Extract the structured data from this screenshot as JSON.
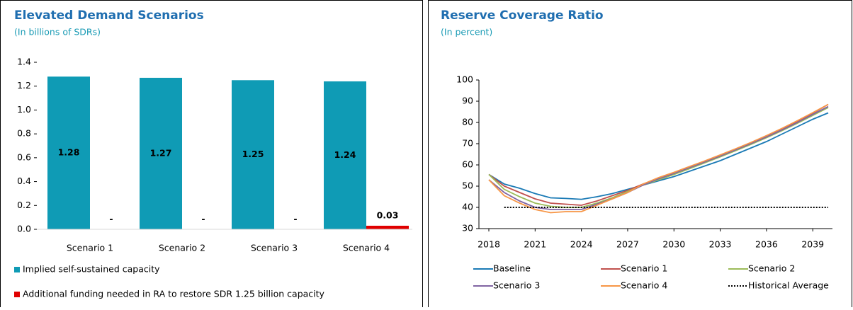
{
  "chart_data": [
    {
      "type": "bar",
      "title": "Elevated Demand Scenarios",
      "subtitle": "(In billions of SDRs)",
      "categories": [
        "Scenario 1",
        "Scenario 2",
        "Scenario 3",
        "Scenario 4"
      ],
      "series": [
        {
          "name": "Implied self-sustained capacity",
          "color": "#0f9bb5",
          "values": [
            1.28,
            1.27,
            1.25,
            1.24
          ],
          "value_labels": [
            "1.28",
            "1.27",
            "1.25",
            "1.24"
          ]
        },
        {
          "name": "Additional funding needed in RA to restore SDR 1.25 billion capacity",
          "color": "#e00000",
          "values": [
            0,
            0,
            0,
            0.03
          ],
          "value_labels": [
            "-",
            "-",
            "-",
            "0.03"
          ]
        }
      ],
      "ylim": [
        0,
        1.4
      ],
      "yticks": [
        {
          "value": 0,
          "label": "0.0"
        },
        0.2,
        0.4,
        0.6,
        0.8,
        {
          "value": 1,
          "label": "1.0"
        },
        1.2,
        1.4
      ],
      "grid": false,
      "legend": "bottom"
    },
    {
      "type": "line",
      "title": "Reserve Coverage Ratio",
      "subtitle": "(In percent)",
      "x": [
        2018,
        2019,
        2020,
        2021,
        2022,
        2023,
        2024,
        2025,
        2026,
        2027,
        2028,
        2029,
        2030,
        2031,
        2032,
        2033,
        2034,
        2035,
        2036,
        2037,
        2038,
        2039,
        2040
      ],
      "series": [
        {
          "name": "Baseline",
          "color": "#1a7ab5",
          "values": [
            55.5,
            51,
            49,
            46.5,
            44.5,
            44.2,
            43.8,
            45,
            46.5,
            48.5,
            50.5,
            52.5,
            54.5,
            57,
            59.5,
            62,
            65,
            68,
            71,
            74.5,
            78,
            81.5,
            84.5
          ]
        },
        {
          "name": "Scenario 1",
          "color": "#c0504d",
          "values": [
            55.5,
            50,
            47,
            44,
            42,
            41.5,
            41,
            43,
            45.5,
            48,
            51,
            53.5,
            56,
            58.8,
            61.6,
            64.4,
            67.3,
            70.3,
            73.4,
            76.8,
            80.5,
            84.4,
            88.5
          ]
        },
        {
          "name": "Scenario 2",
          "color": "#9bbb59",
          "values": [
            55.5,
            48.5,
            45,
            42,
            40.5,
            40,
            40,
            42,
            44.5,
            47.5,
            50.5,
            53,
            55.5,
            58.2,
            61,
            63.8,
            66.7,
            69.7,
            72.8,
            76.1,
            79.6,
            83.3,
            87
          ]
        },
        {
          "name": "Scenario 3",
          "color": "#8064a2",
          "values": [
            53,
            47,
            43,
            40,
            39,
            39,
            39,
            41.5,
            44,
            47,
            50.5,
            53.5,
            56,
            58.7,
            61.4,
            64.2,
            67.1,
            70.1,
            73.2,
            76.5,
            80,
            83.8,
            87.5
          ]
        },
        {
          "name": "Scenario 4",
          "color": "#f79646",
          "values": [
            53,
            45.5,
            42,
            39,
            37.5,
            38,
            38,
            41,
            44,
            47,
            51,
            54,
            56.5,
            59.2,
            61.9,
            64.7,
            67.6,
            70.6,
            73.8,
            77.2,
            80.8,
            84.6,
            88.5
          ]
        },
        {
          "name": "Historical Average",
          "color": "#000000",
          "dash": "dotted",
          "values": [
            null,
            40,
            40,
            40,
            40,
            40,
            40,
            40,
            40,
            40,
            40,
            40,
            40,
            40,
            40,
            40,
            40,
            40,
            40,
            40,
            40,
            40,
            40
          ]
        }
      ],
      "xlim": [
        2018,
        2040
      ],
      "xticks": [
        2018,
        2021,
        2024,
        2027,
        2030,
        2033,
        2036,
        2039
      ],
      "ylim": [
        30,
        100
      ],
      "yticks": [
        30,
        40,
        50,
        60,
        70,
        80,
        90,
        100
      ],
      "grid": false,
      "legend": "bottom"
    }
  ]
}
